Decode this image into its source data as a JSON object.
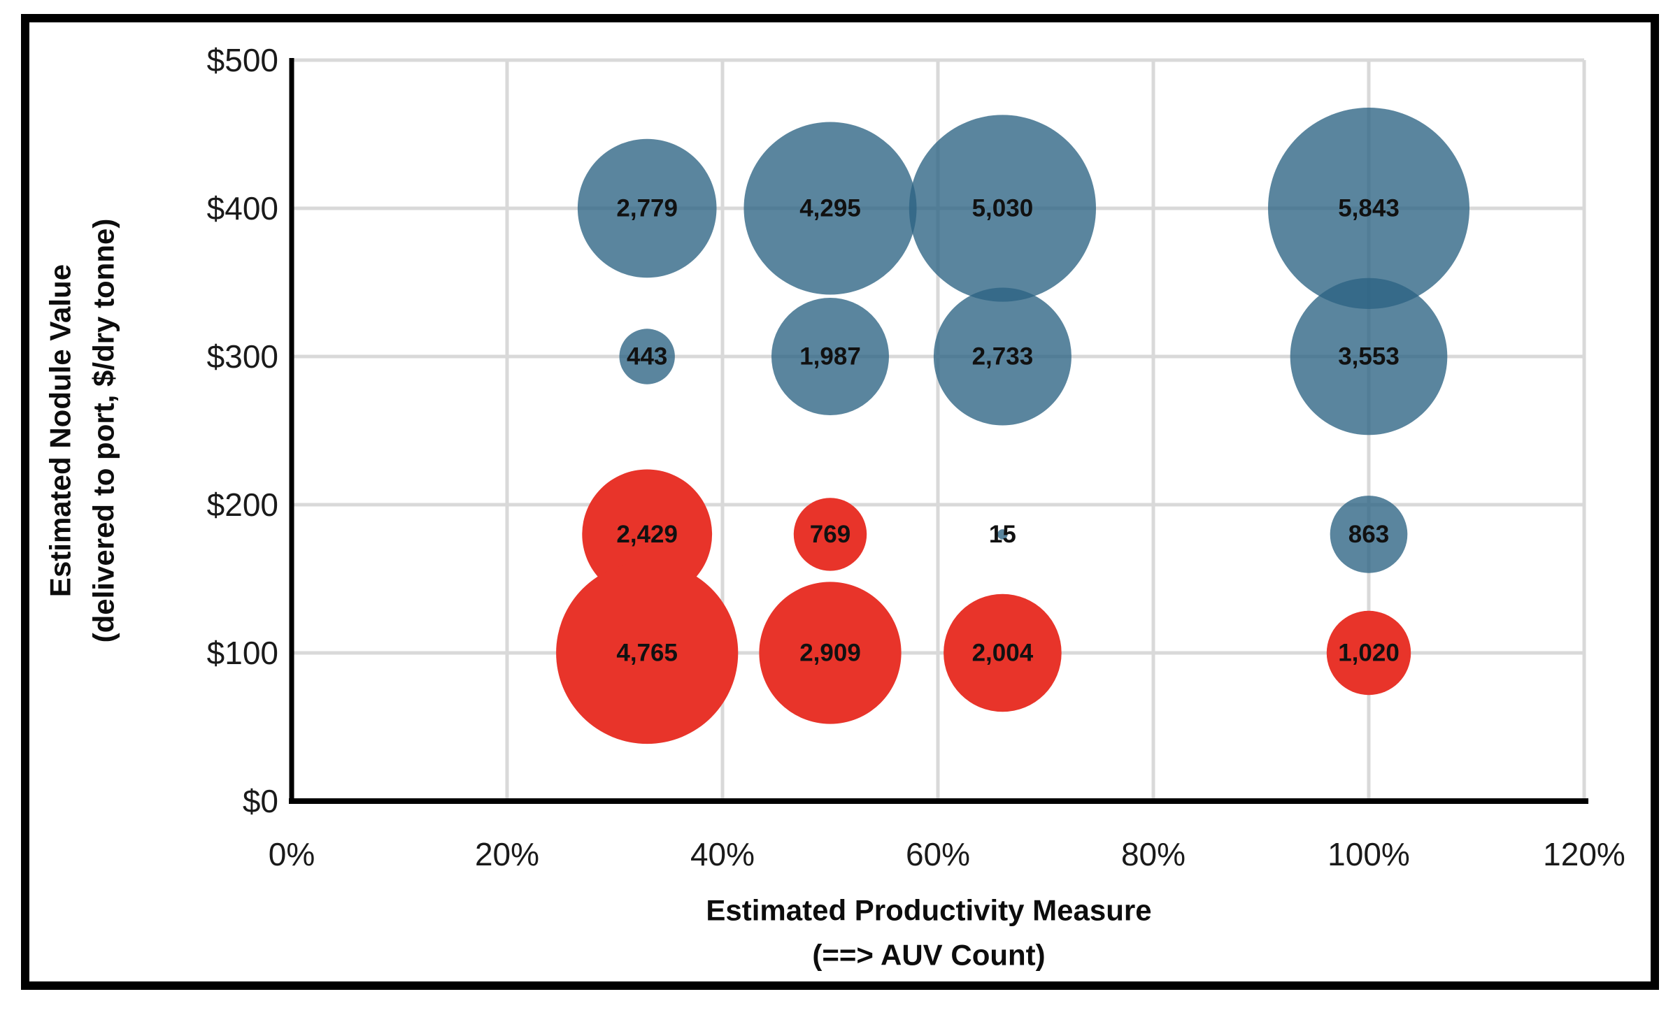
{
  "chart_data": {
    "type": "bubble",
    "title": "",
    "legend": "none",
    "grid": true,
    "x_axis": {
      "title_lines": [
        "Estimated Productivity Measure",
        "(==> AUV Count)"
      ],
      "range": [
        0,
        120
      ],
      "unit": "%",
      "ticks": [
        {
          "value": 0,
          "label": "0%"
        },
        {
          "value": 20,
          "label": "20%"
        },
        {
          "value": 40,
          "label": "40%"
        },
        {
          "value": 60,
          "label": "60%"
        },
        {
          "value": 80,
          "label": "80%"
        },
        {
          "value": 100,
          "label": "100%"
        },
        {
          "value": 120,
          "label": "120%"
        }
      ]
    },
    "y_axis": {
      "title_lines": [
        "Estimated Nodule Value",
        "(delivered to port, $/dry tonne)"
      ],
      "range": [
        0,
        500
      ],
      "unit": "$/dry tonne",
      "ticks": [
        {
          "value": 0,
          "label": "$0"
        },
        {
          "value": 100,
          "label": "$100"
        },
        {
          "value": 200,
          "label": "$200"
        },
        {
          "value": 300,
          "label": "$300"
        },
        {
          "value": 400,
          "label": "$400"
        },
        {
          "value": 500,
          "label": "$500"
        }
      ]
    },
    "series": [
      {
        "name": "blue-series",
        "color": "#2B6383",
        "opacity": 0.78,
        "points": [
          {
            "x": 33,
            "y": 400,
            "size": 2779,
            "label": "2,779"
          },
          {
            "x": 50,
            "y": 400,
            "size": 4295,
            "label": "4,295"
          },
          {
            "x": 66,
            "y": 400,
            "size": 5030,
            "label": "5,030"
          },
          {
            "x": 100,
            "y": 400,
            "size": 5843,
            "label": "5,843"
          },
          {
            "x": 33,
            "y": 300,
            "size": 443,
            "label": "443"
          },
          {
            "x": 50,
            "y": 300,
            "size": 1987,
            "label": "1,987"
          },
          {
            "x": 66,
            "y": 300,
            "size": 2733,
            "label": "2,733"
          },
          {
            "x": 100,
            "y": 300,
            "size": 3553,
            "label": "3,553"
          },
          {
            "x": 66,
            "y": 180,
            "size": 15,
            "label": "15"
          },
          {
            "x": 100,
            "y": 180,
            "size": 863,
            "label": "863"
          }
        ]
      },
      {
        "name": "red-series",
        "color": "#E8342A",
        "opacity": 1,
        "points": [
          {
            "x": 33,
            "y": 180,
            "size": 2429,
            "label": "2,429"
          },
          {
            "x": 50,
            "y": 180,
            "size": 769,
            "label": "769"
          },
          {
            "x": 33,
            "y": 100,
            "size": 4765,
            "label": "4,765"
          },
          {
            "x": 50,
            "y": 100,
            "size": 2909,
            "label": "2,909"
          },
          {
            "x": 66,
            "y": 100,
            "size": 2004,
            "label": "2,004"
          },
          {
            "x": 100,
            "y": 100,
            "size": 1020,
            "label": "1,020"
          }
        ]
      }
    ],
    "colors": {
      "gridline": "#D9D9D9",
      "axis_line": "#000000",
      "frame": "#000000",
      "data_label": "#111111",
      "background": "#FFFFFF"
    }
  }
}
